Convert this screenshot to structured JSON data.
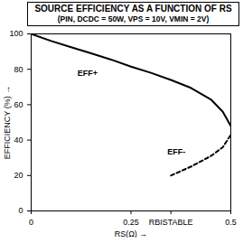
{
  "chart_data": {
    "type": "line",
    "title": "SOURCE EFFICIENCY AS A FUNCTION OF RS",
    "subtitle": "(PIN, DCDC = 50W, VPS = 10V, VMIN = 2V)",
    "x_label": "RS(Ω)",
    "y_label": "EFFICIENCY (%)",
    "x": [
      0,
      0.05,
      0.1,
      0.15,
      0.2,
      0.25,
      0.3,
      0.35,
      0.4,
      0.45,
      0.48,
      0.5
    ],
    "series": [
      {
        "name": "EFF+",
        "color": "#000000",
        "line_style": "solid",
        "values": [
          100,
          96,
          92.5,
          89,
          85.5,
          81.5,
          78,
          74,
          69.5,
          63,
          56,
          48
        ]
      },
      {
        "name": "EFF-",
        "color": "#000000",
        "line_style": "dashed",
        "values": [
          null,
          null,
          null,
          null,
          null,
          null,
          null,
          20,
          25,
          31,
          36,
          43
        ]
      }
    ],
    "xlim": [
      0,
      0.5
    ],
    "ylim": [
      0,
      100
    ],
    "xticks": [
      0,
      0.25,
      {
        "value": 0.35,
        "label": "RBISTABLE"
      },
      0.5
    ],
    "yticks": [
      0,
      20,
      40,
      60,
      80,
      100
    ],
    "grid": false
  }
}
